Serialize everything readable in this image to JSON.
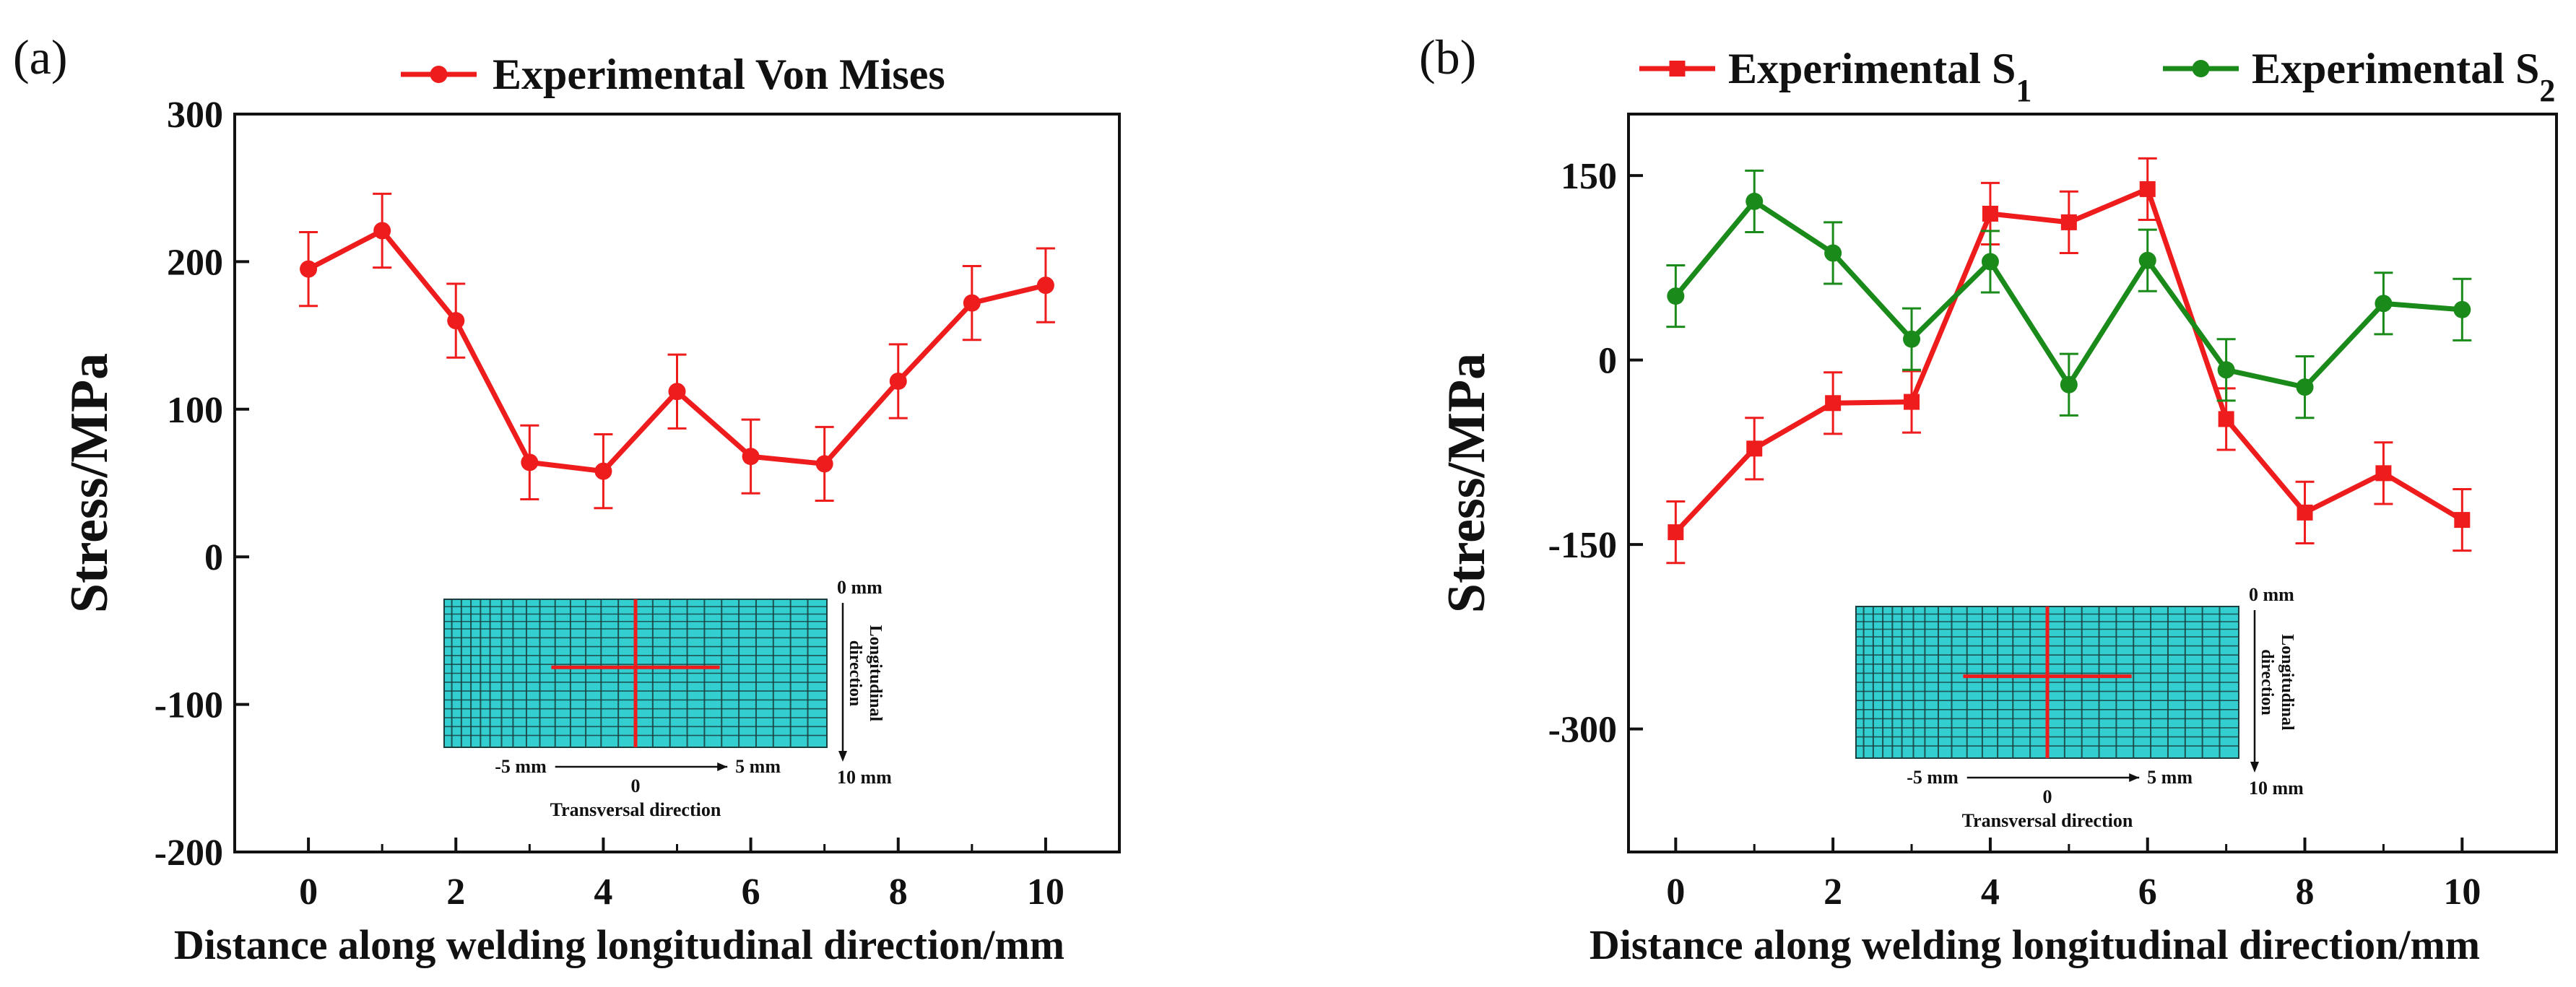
{
  "chart_data": [
    {
      "panel_label": "(a)",
      "type": "line",
      "title": "",
      "xlabel": "Distance along welding longitudinal direction/mm",
      "ylabel": "Stress/MPa",
      "xlim": [
        -1,
        11
      ],
      "ylim": [
        -200,
        300
      ],
      "xticks": [
        "0",
        "2",
        "4",
        "6",
        "8",
        "10"
      ],
      "yticks": [
        "300",
        "200",
        "100",
        "0",
        "-100",
        "-200"
      ],
      "x": [
        0,
        1,
        2,
        3,
        4,
        5,
        6,
        7,
        8,
        9,
        10
      ],
      "series": [
        {
          "name": "Experimental Von Mises",
          "color": "#ee1c1c",
          "marker": "circle",
          "values": [
            195,
            221,
            160,
            64,
            58,
            112,
            68,
            63,
            119,
            172,
            184
          ],
          "error": 25
        }
      ],
      "legend_position": "top-center",
      "inset": {
        "top_label": "0 mm",
        "bottom_label": "10 mm",
        "right_label_line1": "Longitudinal",
        "right_label_line2": "direction",
        "left_label": "-5 mm",
        "center_label": "0",
        "right_axis_label": "5 mm",
        "bottom_caption": "Transversal direction",
        "fill_color": "#33cfd0",
        "grid_color": "#1a3f3f",
        "cross_color": "#ee1c1c"
      }
    },
    {
      "panel_label": "(b)",
      "type": "line",
      "title": "",
      "xlabel": "Distance along welding longitudinal direction/mm",
      "ylabel": "Stress/MPa",
      "xlim": [
        -0.6,
        11.2
      ],
      "ylim": [
        -400,
        200
      ],
      "xticks": [
        "0",
        "2",
        "4",
        "6",
        "8",
        "10"
      ],
      "yticks": [
        "150",
        "0",
        "-150",
        "-300"
      ],
      "x": [
        0,
        1,
        2,
        3,
        4,
        5,
        6,
        7,
        8,
        9,
        10
      ],
      "series": [
        {
          "name": "Experimental S",
          "subscript": "1",
          "color": "#ee1c1c",
          "marker": "square",
          "values": [
            -140,
            -72,
            -35,
            -34,
            119,
            112,
            139,
            -48,
            -124,
            -92,
            -130
          ],
          "error": 25
        },
        {
          "name": "Experimental S",
          "subscript": "2",
          "color": "#1a8a1a",
          "marker": "circle",
          "values": [
            52,
            129,
            87,
            17,
            80,
            -20,
            81,
            -8,
            -22,
            46,
            41
          ],
          "error": 25
        }
      ],
      "legend_position": "top",
      "inset": {
        "top_label": "0 mm",
        "bottom_label": "10 mm",
        "right_label_line1": "Longitudinal",
        "right_label_line2": "direction",
        "left_label": "-5 mm",
        "center_label": "0",
        "right_axis_label": "5 mm",
        "bottom_caption": "Transversal direction",
        "fill_color": "#33cfd0",
        "grid_color": "#1a3f3f",
        "cross_color": "#ee1c1c"
      }
    }
  ]
}
